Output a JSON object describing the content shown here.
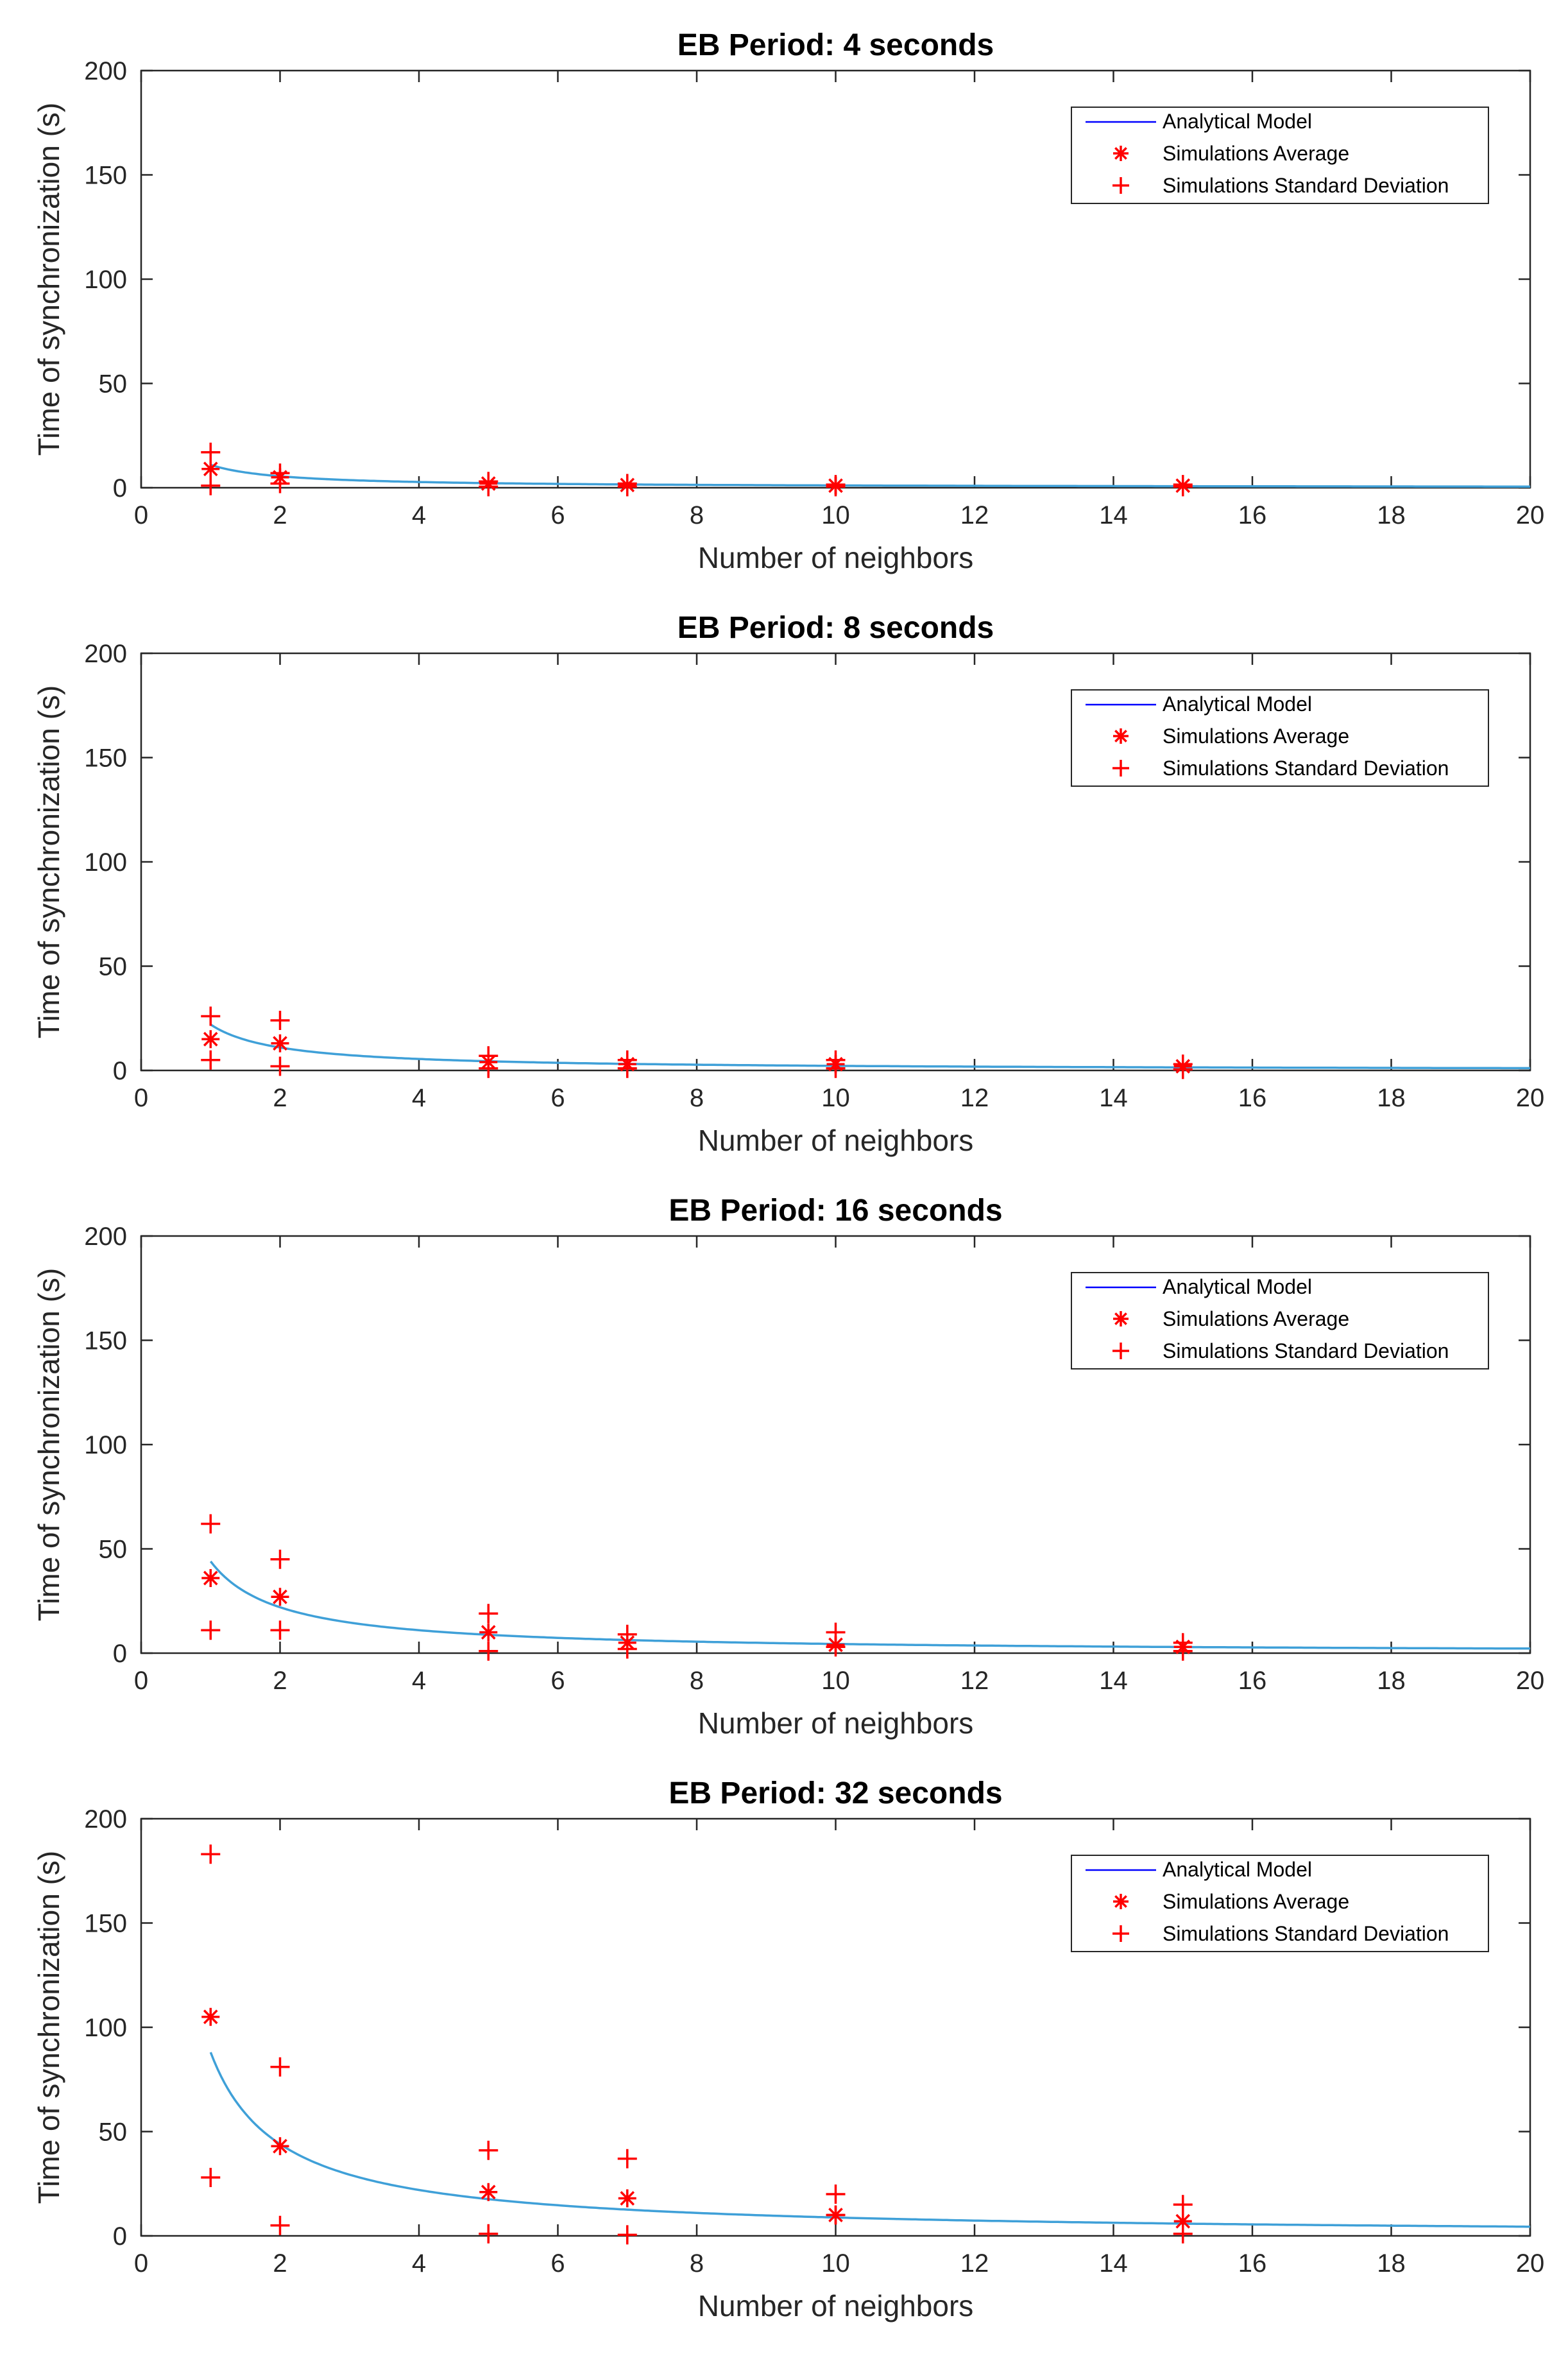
{
  "colors": {
    "analytical": "#3fa0d8",
    "legend_line": "#0000ff",
    "markers": "#ff0000",
    "axes": "#262626"
  },
  "legend": {
    "entries": [
      "Analytical Model",
      "Simulations Average",
      "Simulations Standard Deviation"
    ],
    "placement": "top-right"
  },
  "chart_data": [
    {
      "type": "line",
      "title": "EB Period: 4 seconds",
      "xlabel": "Number of neighbors",
      "ylabel": "Time of synchronization (s)",
      "xlim": [
        0,
        20
      ],
      "ylim": [
        0,
        200
      ],
      "xticks": [
        0,
        2,
        4,
        6,
        8,
        10,
        12,
        14,
        16,
        18,
        20
      ],
      "yticks": [
        0,
        50,
        100,
        150,
        200
      ],
      "analytical_model": {
        "formula": "A / x",
        "A": 11,
        "x_range": [
          1,
          20
        ]
      },
      "x": [
        1,
        2,
        5,
        7,
        10,
        15
      ],
      "average": [
        9,
        5,
        2,
        1.3,
        1,
        1
      ],
      "std_upper": [
        17,
        7,
        3,
        2,
        1.5,
        1.5
      ],
      "std_lower": [
        1,
        2,
        0.5,
        0.5,
        0.5,
        0.5
      ]
    },
    {
      "type": "line",
      "title": "EB Period: 8 seconds",
      "xlabel": "Number of neighbors",
      "ylabel": "Time of synchronization (s)",
      "xlim": [
        0,
        20
      ],
      "ylim": [
        0,
        200
      ],
      "xticks": [
        0,
        2,
        4,
        6,
        8,
        10,
        12,
        14,
        16,
        18,
        20
      ],
      "yticks": [
        0,
        50,
        100,
        150,
        200
      ],
      "analytical_model": {
        "formula": "A / x",
        "A": 22,
        "x_range": [
          1,
          20
        ]
      },
      "x": [
        1,
        2,
        5,
        7,
        10,
        15
      ],
      "average": [
        15,
        13,
        4,
        3,
        3,
        2
      ],
      "std_upper": [
        26,
        24,
        7,
        5,
        5,
        3
      ],
      "std_lower": [
        5,
        2,
        1,
        1,
        1,
        0.5
      ]
    },
    {
      "type": "line",
      "title": "EB Period: 16 seconds",
      "xlabel": "Number of neighbors",
      "ylabel": "Time of synchronization (s)",
      "xlim": [
        0,
        20
      ],
      "ylim": [
        0,
        200
      ],
      "xticks": [
        0,
        2,
        4,
        6,
        8,
        10,
        12,
        14,
        16,
        18,
        20
      ],
      "yticks": [
        0,
        50,
        100,
        150,
        200
      ],
      "analytical_model": {
        "formula": "A / x",
        "A": 44,
        "x_range": [
          1,
          20
        ]
      },
      "x": [
        1,
        2,
        5,
        7,
        10,
        15
      ],
      "average": [
        36,
        27,
        10,
        5,
        4,
        3
      ],
      "std_upper": [
        62,
        45,
        19,
        9,
        10,
        5
      ],
      "std_lower": [
        11,
        11,
        1,
        2,
        3,
        1
      ]
    },
    {
      "type": "line",
      "title": "EB Period: 32 seconds",
      "xlabel": "Number of neighbors",
      "ylabel": "Time of synchronization (s)",
      "xlim": [
        0,
        20
      ],
      "ylim": [
        0,
        200
      ],
      "xticks": [
        0,
        2,
        4,
        6,
        8,
        10,
        12,
        14,
        16,
        18,
        20
      ],
      "yticks": [
        0,
        50,
        100,
        150,
        200
      ],
      "analytical_model": {
        "formula": "A / x",
        "A": 88,
        "x_range": [
          1,
          20
        ]
      },
      "x": [
        1,
        2,
        5,
        7,
        10,
        15
      ],
      "average": [
        105,
        43,
        21,
        18,
        10,
        7
      ],
      "std_upper": [
        183,
        81,
        41,
        37,
        20,
        15
      ],
      "std_lower": [
        28,
        5,
        1,
        0.5,
        10,
        1
      ]
    }
  ]
}
